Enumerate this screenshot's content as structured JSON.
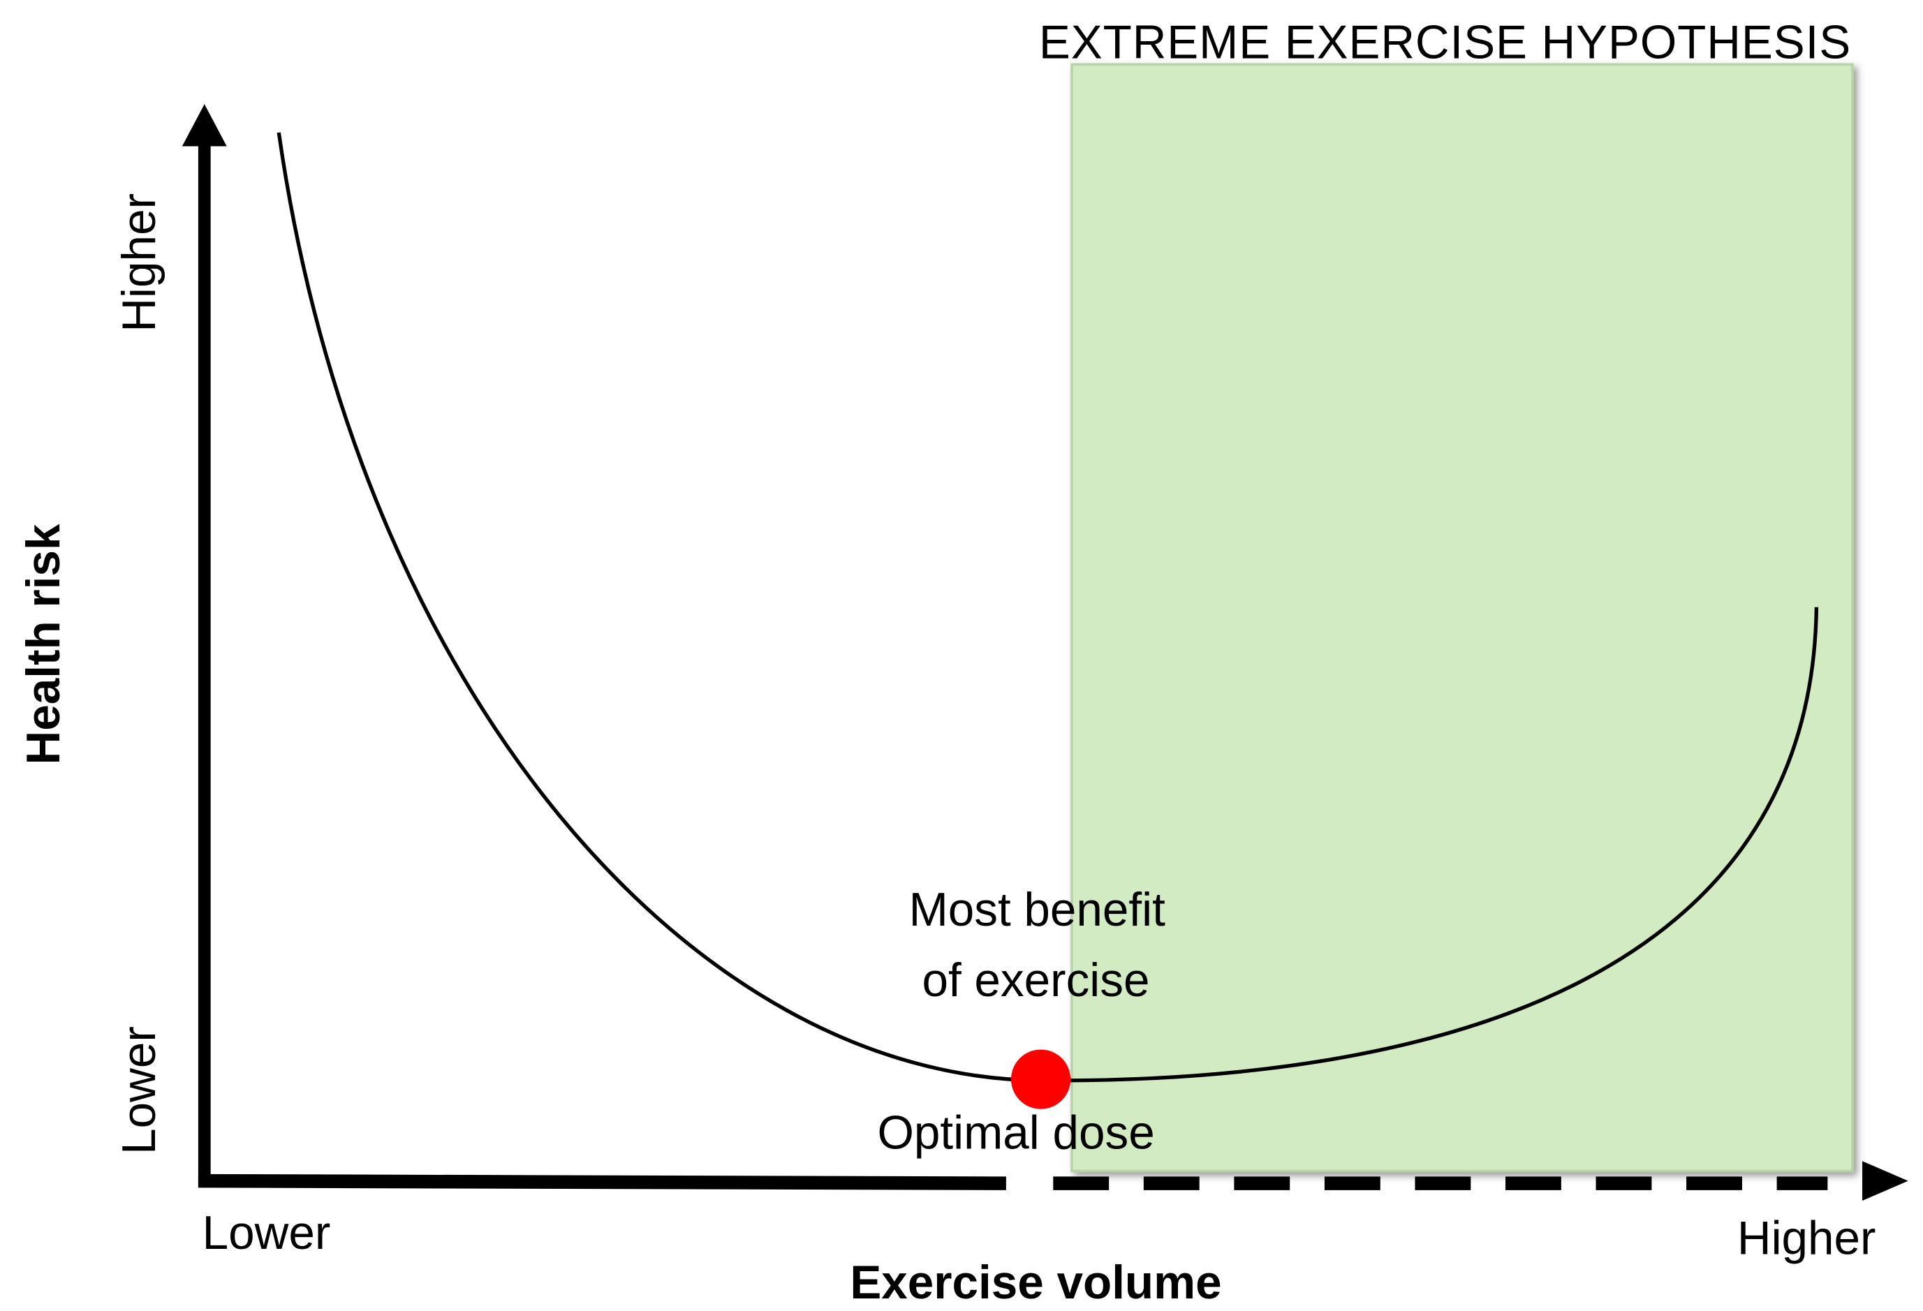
{
  "title": "EXTREME EXERCISE HYPOTHESIS",
  "y_axis": {
    "label": "Health risk",
    "high": "Higher",
    "low": "Lower"
  },
  "x_axis": {
    "label": "Exercise volume",
    "low": "Lower",
    "high": "Higher"
  },
  "annotations": {
    "most_benefit": [
      "Most benefit",
      "of exercise"
    ],
    "optimal_dose": "Optimal dose"
  }
}
